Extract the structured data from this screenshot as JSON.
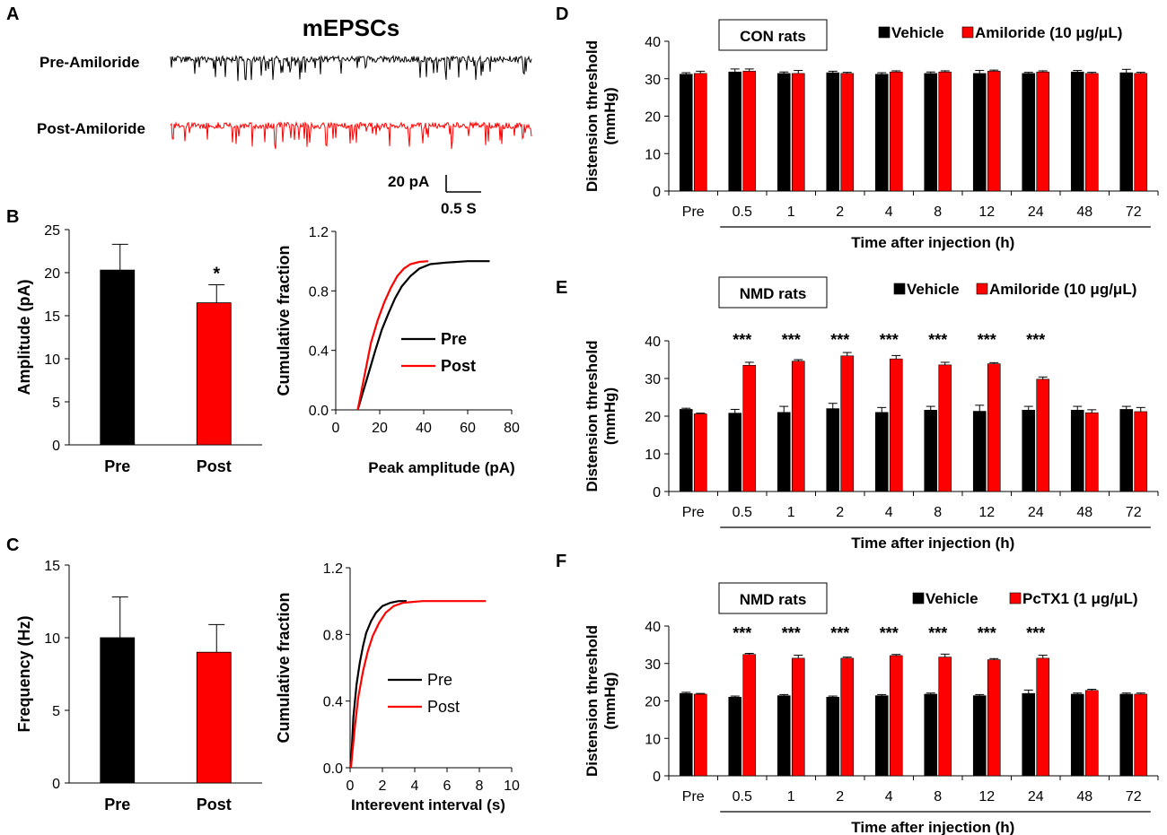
{
  "colors": {
    "pre": "#000000",
    "post": "#ff0000",
    "axis": "#000000"
  },
  "panel_labels": [
    "A",
    "B",
    "C",
    "D",
    "E",
    "F"
  ],
  "panel_a": {
    "title": "mEPSCs",
    "pre_label": "Pre-Amiloride",
    "post_label": "Post-Amiloride",
    "scale_y_label": "20 pA",
    "scale_x_label": "0.5 S"
  },
  "chart_data": [
    {
      "id": "B-bar",
      "type": "bar",
      "categories": [
        "Pre",
        "Post"
      ],
      "values": [
        20.3,
        16.5
      ],
      "errors": [
        3.0,
        2.1
      ],
      "significance": [
        "",
        "*"
      ],
      "ylabel": "Amplitude (pA)",
      "ylim": [
        0,
        25
      ],
      "yticks": [
        0,
        5,
        10,
        15,
        20,
        25
      ]
    },
    {
      "id": "B-cdf",
      "type": "line",
      "xlabel": "Peak amplitude (pA)",
      "ylabel": "Cumulative fraction",
      "xlim": [
        0,
        80
      ],
      "ylim": [
        0,
        1.2
      ],
      "xticks": [
        0,
        20,
        40,
        60,
        80
      ],
      "yticks": [
        "0.0",
        "0.4",
        "0.8",
        "1.2"
      ],
      "legend": [
        "Pre",
        "Post"
      ],
      "series": [
        {
          "name": "Pre",
          "x": [
            10,
            12,
            15,
            18,
            21,
            24,
            27,
            30,
            34,
            38,
            43,
            50,
            60,
            70
          ],
          "y": [
            0,
            0.1,
            0.25,
            0.4,
            0.54,
            0.65,
            0.75,
            0.83,
            0.9,
            0.95,
            0.98,
            0.99,
            1.0,
            1.0
          ]
        },
        {
          "name": "Post",
          "x": [
            10,
            12,
            14,
            16,
            19,
            22,
            25,
            28,
            31,
            34,
            38,
            42
          ],
          "y": [
            0,
            0.15,
            0.3,
            0.45,
            0.6,
            0.72,
            0.82,
            0.9,
            0.95,
            0.98,
            0.995,
            1.0
          ]
        }
      ]
    },
    {
      "id": "C-bar",
      "type": "bar",
      "categories": [
        "Pre",
        "Post"
      ],
      "values": [
        10.0,
        9.0
      ],
      "errors": [
        2.8,
        1.9
      ],
      "significance": [
        "",
        ""
      ],
      "ylabel": "Frequency (Hz)",
      "ylim": [
        0,
        15
      ],
      "yticks": [
        0,
        5,
        10,
        15
      ]
    },
    {
      "id": "C-cdf",
      "type": "line",
      "xlabel": "Interevent interval (s)",
      "ylabel": "Cumulative fraction",
      "xlim": [
        0,
        10
      ],
      "ylim": [
        0,
        1.2
      ],
      "xticks": [
        0,
        2,
        4,
        6,
        8,
        10
      ],
      "yticks": [
        "0.0",
        "0.4",
        "0.8",
        "1.2"
      ],
      "legend": [
        "Pre",
        "Post"
      ],
      "series": [
        {
          "name": "Pre",
          "x": [
            0.05,
            0.2,
            0.4,
            0.6,
            0.8,
            1.0,
            1.3,
            1.6,
            2.0,
            2.5,
            3.0,
            3.5
          ],
          "y": [
            0,
            0.3,
            0.5,
            0.63,
            0.73,
            0.81,
            0.88,
            0.93,
            0.97,
            0.99,
            1.0,
            1.0
          ]
        },
        {
          "name": "Post",
          "x": [
            0.05,
            0.3,
            0.5,
            0.8,
            1.1,
            1.4,
            1.8,
            2.2,
            2.7,
            3.3,
            4.5,
            8.4
          ],
          "y": [
            0,
            0.25,
            0.42,
            0.58,
            0.7,
            0.79,
            0.87,
            0.93,
            0.97,
            0.99,
            1.0,
            1.0
          ]
        }
      ]
    },
    {
      "id": "D",
      "type": "bar",
      "group_label": "CON rats",
      "categories": [
        "Pre",
        "0.5",
        "1",
        "2",
        "4",
        "8",
        "12",
        "24",
        "48",
        "72"
      ],
      "series": [
        {
          "name": "Vehicle",
          "values": [
            31.2,
            31.8,
            31.4,
            31.6,
            31.2,
            31.4,
            31.4,
            31.4,
            31.8,
            31.6
          ],
          "errors": [
            0.4,
            0.8,
            0.4,
            0.4,
            0.4,
            0.4,
            0.8,
            0.3,
            0.4,
            0.9
          ]
        },
        {
          "name": "Amiloride (10 μg/μL)",
          "values": [
            31.4,
            32.0,
            31.4,
            31.4,
            31.8,
            31.8,
            32.0,
            31.8,
            31.4,
            31.4
          ],
          "errors": [
            0.6,
            0.6,
            0.8,
            0.3,
            0.3,
            0.3,
            0.3,
            0.3,
            0.3,
            0.3
          ]
        }
      ],
      "significance": [
        "",
        "",
        "",
        "",
        "",
        "",
        "",
        "",
        "",
        ""
      ],
      "ylabel": "Distension  threshold (mmHg)",
      "xlabel": "Time after injection (h)",
      "ylim": [
        0,
        40
      ],
      "yticks": [
        0,
        10,
        20,
        30,
        40
      ]
    },
    {
      "id": "E",
      "type": "bar",
      "group_label": "NMD rats",
      "categories": [
        "Pre",
        "0.5",
        "1",
        "2",
        "4",
        "8",
        "12",
        "24",
        "48",
        "72"
      ],
      "series": [
        {
          "name": "Vehicle",
          "values": [
            21.8,
            20.8,
            21.0,
            22.0,
            21.0,
            21.6,
            21.3,
            21.6,
            21.6,
            21.8
          ],
          "errors": [
            0.3,
            1.0,
            1.6,
            1.4,
            1.3,
            1.0,
            1.6,
            1.0,
            1.0,
            0.8
          ]
        },
        {
          "name": "Amiloride (10 μg/μL)",
          "values": [
            20.6,
            33.5,
            34.6,
            36.0,
            35.2,
            33.6,
            33.9,
            29.8,
            20.9,
            21.2
          ],
          "errors": [
            0.2,
            0.8,
            0.4,
            0.9,
            0.9,
            0.7,
            0.3,
            0.6,
            0.8,
            1.1
          ]
        }
      ],
      "significance": [
        "",
        "***",
        "***",
        "***",
        "***",
        "***",
        "***",
        "***",
        "",
        ""
      ],
      "ylabel": "Distension  threshold (mmHg)",
      "xlabel": "Time after injection (h)",
      "ylim": [
        0,
        40
      ],
      "yticks": [
        0,
        10,
        20,
        30,
        40
      ]
    },
    {
      "id": "F",
      "type": "bar",
      "group_label": "NMD rats",
      "categories": [
        "Pre",
        "0.5",
        "1",
        "2",
        "4",
        "8",
        "12",
        "24",
        "48",
        "72"
      ],
      "series": [
        {
          "name": "Vehicle",
          "values": [
            22.0,
            21.0,
            21.4,
            21.0,
            21.4,
            21.8,
            21.4,
            22.0,
            21.8,
            21.8
          ],
          "errors": [
            0.3,
            0.3,
            0.3,
            0.3,
            0.3,
            0.3,
            0.3,
            0.9,
            0.3,
            0.3
          ]
        },
        {
          "name": "PcTX1 (1 μg/μL)",
          "values": [
            21.8,
            32.4,
            31.4,
            31.4,
            32.1,
            31.7,
            31.0,
            31.4,
            22.8,
            21.8
          ],
          "errors": [
            0.2,
            0.3,
            0.8,
            0.3,
            0.3,
            0.8,
            0.3,
            0.8,
            0.3,
            0.3
          ]
        }
      ],
      "significance": [
        "",
        "***",
        "***",
        "***",
        "***",
        "***",
        "***",
        "***",
        "",
        ""
      ],
      "ylabel": "Distension  threshold (mmHg)",
      "xlabel": "Time after injection (h)",
      "ylim": [
        0,
        40
      ],
      "yticks": [
        0,
        10,
        20,
        30,
        40
      ]
    }
  ]
}
